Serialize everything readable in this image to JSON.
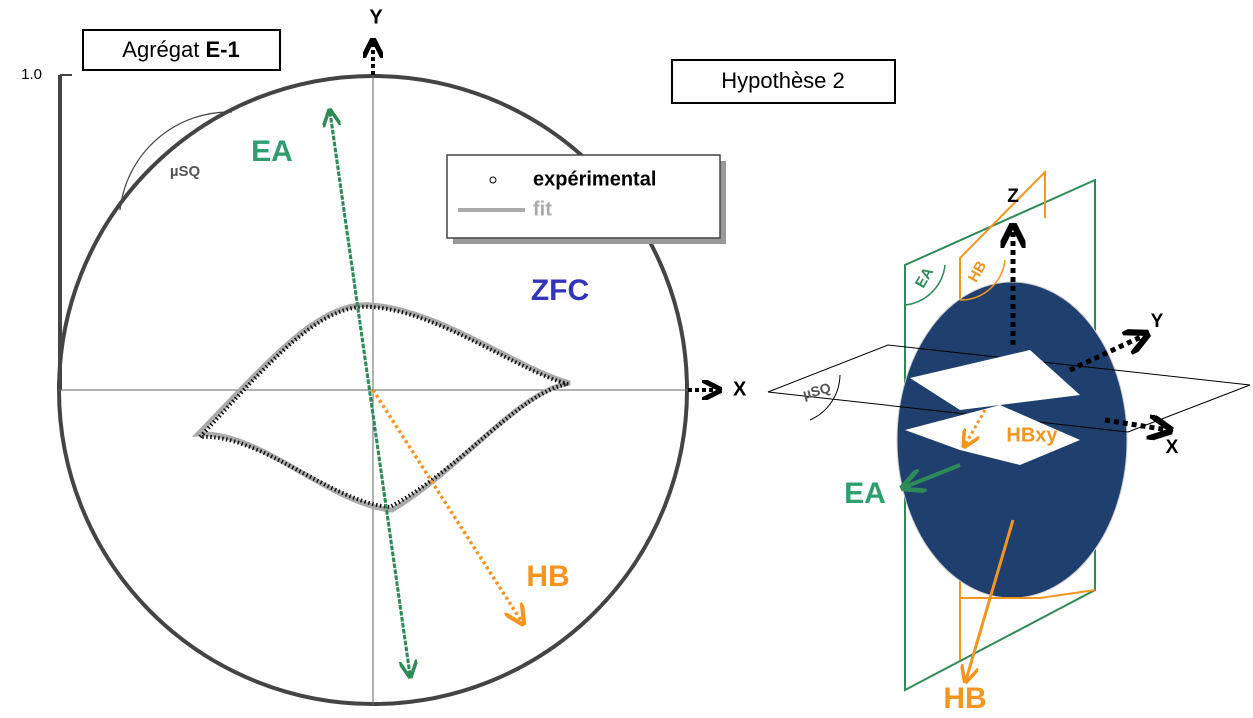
{
  "left_plot": {
    "frame_label": {
      "text": "Agrégat",
      "bold": "E-1"
    },
    "tick": "1.0",
    "y_axis": "Y",
    "x_axis": "X",
    "angle": "µSQ",
    "easy_axis": "EA",
    "legend": [
      "expérimental",
      "fit"
    ],
    "condition": "ZFC",
    "bias": "HB"
  },
  "right_diagram": {
    "title": "Hypothèse 2",
    "z_axis": "Z",
    "y_axis": "Y",
    "x_axis": "X",
    "plane_ea": "EA",
    "plane_hb": "HB",
    "angle": "µSQ",
    "projection": "HBxy",
    "easy_axis": "EA",
    "bias": "HB"
  }
}
